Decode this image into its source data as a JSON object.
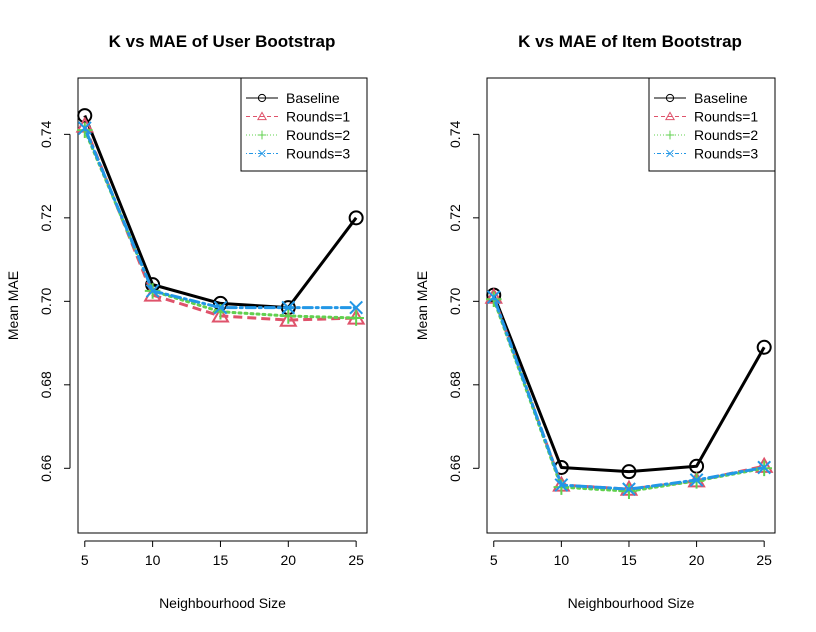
{
  "chart_data": [
    {
      "type": "line",
      "title": "K vs MAE of User Bootstrap",
      "xlabel": "Neighbourhood Size",
      "ylabel": "Mean MAE",
      "x": [
        5,
        10,
        15,
        20,
        25
      ],
      "xticks": [
        "5",
        "10",
        "15",
        "20",
        "25"
      ],
      "yticks": [
        "0.66",
        "0.68",
        "0.70",
        "0.72",
        "0.74"
      ],
      "xlim": [
        4.5,
        25.8
      ],
      "ylim": [
        0.6445,
        0.7535
      ],
      "legend_position": "top-right",
      "series": [
        {
          "name": "Baseline",
          "values": [
            0.7445,
            0.704,
            0.6995,
            0.6985,
            0.72
          ],
          "color": "#000000",
          "marker": "circle",
          "dash": "solid"
        },
        {
          "name": "Rounds=1",
          "values": [
            0.742,
            0.7015,
            0.6965,
            0.6955,
            0.696
          ],
          "color": "#DF536B",
          "marker": "triangle",
          "dash": "dashed"
        },
        {
          "name": "Rounds=2",
          "values": [
            0.741,
            0.7025,
            0.6975,
            0.6965,
            0.696
          ],
          "color": "#61D04F",
          "marker": "plus",
          "dash": "dotted"
        },
        {
          "name": "Rounds=3",
          "values": [
            0.7415,
            0.7025,
            0.6985,
            0.6985,
            0.6985
          ],
          "color": "#2297E6",
          "marker": "cross",
          "dash": "dotdash"
        }
      ]
    },
    {
      "type": "line",
      "title": "K vs MAE of Item Bootstrap",
      "xlabel": "Neighbourhood Size",
      "ylabel": "Mean MAE",
      "x": [
        5,
        10,
        15,
        20,
        25
      ],
      "xticks": [
        "5",
        "10",
        "15",
        "20",
        "25"
      ],
      "yticks": [
        "0.66",
        "0.68",
        "0.70",
        "0.72",
        "0.74"
      ],
      "xlim": [
        4.5,
        25.8
      ],
      "ylim": [
        0.6445,
        0.7535
      ],
      "legend_position": "top-right",
      "series": [
        {
          "name": "Baseline",
          "values": [
            0.7015,
            0.6602,
            0.6592,
            0.6605,
            0.689
          ],
          "color": "#000000",
          "marker": "circle",
          "dash": "solid"
        },
        {
          "name": "Rounds=1",
          "values": [
            0.701,
            0.656,
            0.655,
            0.657,
            0.6605
          ],
          "color": "#DF536B",
          "marker": "triangle",
          "dash": "dashed"
        },
        {
          "name": "Rounds=2",
          "values": [
            0.7005,
            0.6555,
            0.6545,
            0.657,
            0.66
          ],
          "color": "#61D04F",
          "marker": "plus",
          "dash": "dotted"
        },
        {
          "name": "Rounds=3",
          "values": [
            0.701,
            0.656,
            0.655,
            0.6572,
            0.6602
          ],
          "color": "#2297E6",
          "marker": "cross",
          "dash": "dotdash"
        }
      ]
    }
  ]
}
